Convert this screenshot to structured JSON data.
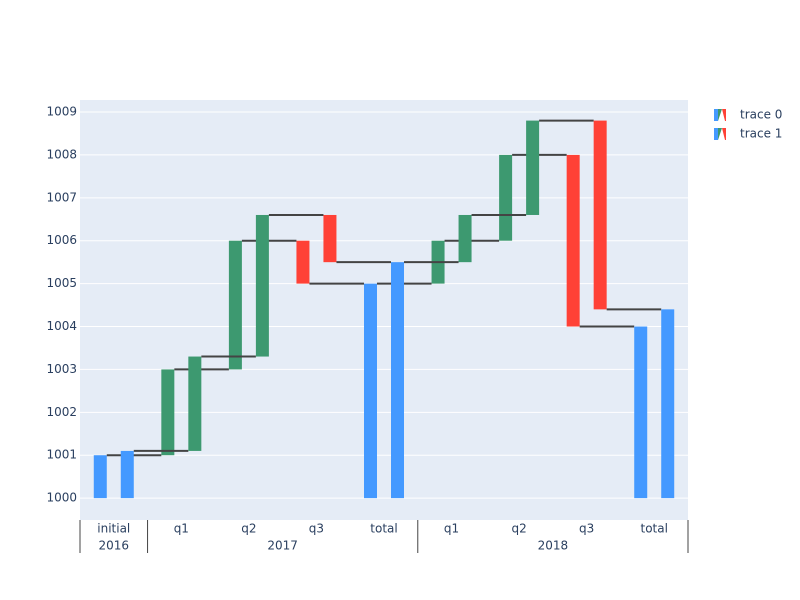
{
  "chart_data": {
    "type": "waterfall",
    "groups": [
      {
        "name": "2016",
        "categories": [
          "initial"
        ]
      },
      {
        "name": "2017",
        "categories": [
          "q1",
          "q2",
          "q3",
          "total"
        ]
      },
      {
        "name": "2018",
        "categories": [
          "q1",
          "q2",
          "q3",
          "total"
        ]
      }
    ],
    "base": 1000,
    "measure": [
      "absolute",
      "relative",
      "relative",
      "relative",
      "total",
      "relative",
      "relative",
      "relative",
      "total"
    ],
    "series": [
      {
        "name": "trace 0",
        "values": [
          1,
          2,
          3,
          -1,
          5,
          1,
          2,
          -4,
          4
        ]
      },
      {
        "name": "trace 1",
        "values": [
          1.1,
          2.2,
          3.3,
          -1.1,
          5.5,
          1.1,
          2.2,
          -4.4,
          4.4
        ]
      }
    ],
    "colors": {
      "increasing": "#3d9970",
      "decreasing": "#ff4136",
      "total": "#4499ff"
    },
    "ylim": [
      999.49,
      1009.28
    ],
    "yticks": [
      1000,
      1001,
      1002,
      1003,
      1004,
      1005,
      1006,
      1007,
      1008,
      1009
    ],
    "grid": true
  }
}
